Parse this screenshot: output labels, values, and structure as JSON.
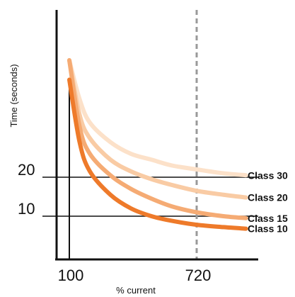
{
  "chart_data": {
    "type": "line",
    "xlabel": "% current",
    "ylabel": "Time (seconds)",
    "x_ticks": [
      100,
      720
    ],
    "y_ticks": [
      10,
      20
    ],
    "reference_lines": {
      "horizontal": [
        10,
        20
      ],
      "vertical_dashed": 720
    },
    "series": [
      {
        "name": "Class 30",
        "color": "#FCE1C9",
        "x": [
          100,
          150,
          200,
          300,
          400,
          500,
          600,
          720,
          850,
          960
        ],
        "y": [
          50,
          40,
          34,
          29,
          26,
          24.5,
          23,
          22,
          21,
          20.5
        ]
      },
      {
        "name": "Class 20",
        "color": "#F9CBA4",
        "x": [
          100,
          150,
          200,
          300,
          400,
          500,
          600,
          720,
          850,
          960
        ],
        "y": [
          50,
          36,
          30,
          24.5,
          21.5,
          19.5,
          18,
          16.5,
          15.5,
          14.8
        ]
      },
      {
        "name": "Class 15",
        "color": "#F5AB74",
        "x": [
          100,
          150,
          200,
          300,
          400,
          500,
          600,
          720,
          850,
          960
        ],
        "y": [
          50,
          33,
          26,
          20.5,
          17,
          14.5,
          12.5,
          11,
          10,
          9.5
        ]
      },
      {
        "name": "Class 10",
        "color": "#EE7A2A",
        "x": [
          100,
          150,
          200,
          300,
          400,
          500,
          600,
          720,
          850,
          960
        ],
        "y": [
          45,
          29,
          21.5,
          15.5,
          12,
          10,
          8.8,
          7.8,
          7.2,
          6.8
        ]
      }
    ]
  }
}
